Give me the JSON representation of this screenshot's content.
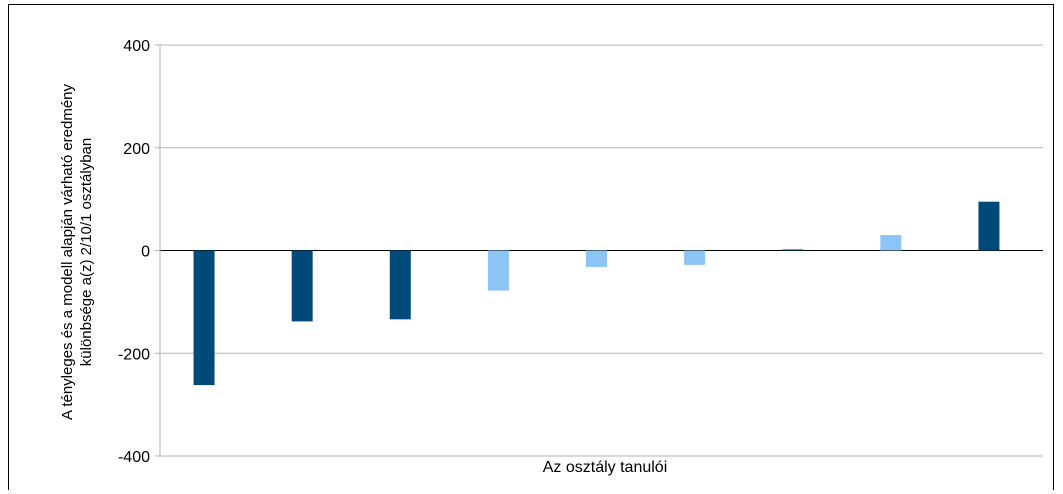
{
  "chart_data": {
    "type": "bar",
    "title": "",
    "xlabel": "Az osztály tanulói",
    "ylabel_lines": [
      "A tényleges és a modell alapján várható eredmény",
      "különbsége a(z) 2/10/1 osztályban"
    ],
    "ylim": [
      -400,
      400
    ],
    "yticks": [
      400,
      200,
      0,
      -200,
      -400
    ],
    "grid": true,
    "legend": "none",
    "values": [
      -262,
      -138,
      -134,
      -78,
      -32,
      -28,
      2,
      30,
      95
    ],
    "bar_colors": [
      "#004a79",
      "#004a79",
      "#004a79",
      "#8cc4f5",
      "#8cc4f5",
      "#8cc4f5",
      "#004a79",
      "#8cc4f5",
      "#004a79"
    ]
  },
  "colors": {
    "dark_bar": "#004a79",
    "light_bar": "#8cc4f5",
    "grid": "#b3b3b3",
    "axis": "#000000"
  }
}
